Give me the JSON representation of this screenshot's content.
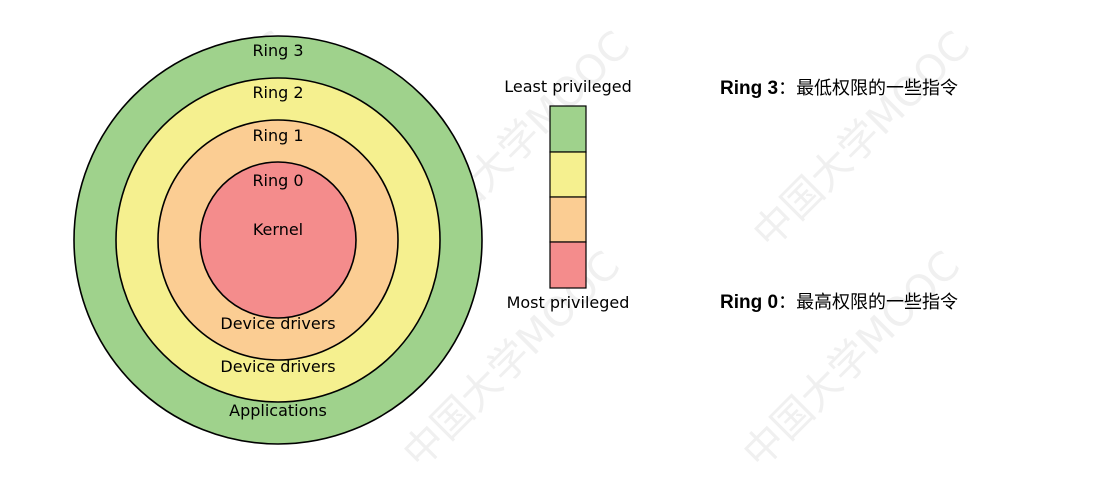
{
  "diagram": {
    "rings": [
      {
        "id": "ring3",
        "title": "Ring 3",
        "bottom_label": "Applications",
        "color": "#9fd28c"
      },
      {
        "id": "ring2",
        "title": "Ring 2",
        "bottom_label": "Device drivers",
        "color": "#f5f08f"
      },
      {
        "id": "ring1",
        "title": "Ring 1",
        "bottom_label": "Device drivers",
        "color": "#fbcd93"
      },
      {
        "id": "ring0",
        "title": "Ring 0",
        "center_label": "Kernel",
        "color": "#f48c8c"
      }
    ]
  },
  "legend": {
    "top_label": "Least privileged",
    "bottom_label": "Most privileged",
    "colors": [
      "#9fd28c",
      "#f5f08f",
      "#fbcd93",
      "#f48c8c"
    ]
  },
  "notes": {
    "ring3": {
      "label": "Ring 3",
      "separator": "：",
      "text": "最低权限的一些指令"
    },
    "ring0": {
      "label": "Ring 0",
      "separator": "：",
      "text": "最高权限的一些指令"
    }
  },
  "watermark": {
    "text": "中国大学MOOC"
  }
}
